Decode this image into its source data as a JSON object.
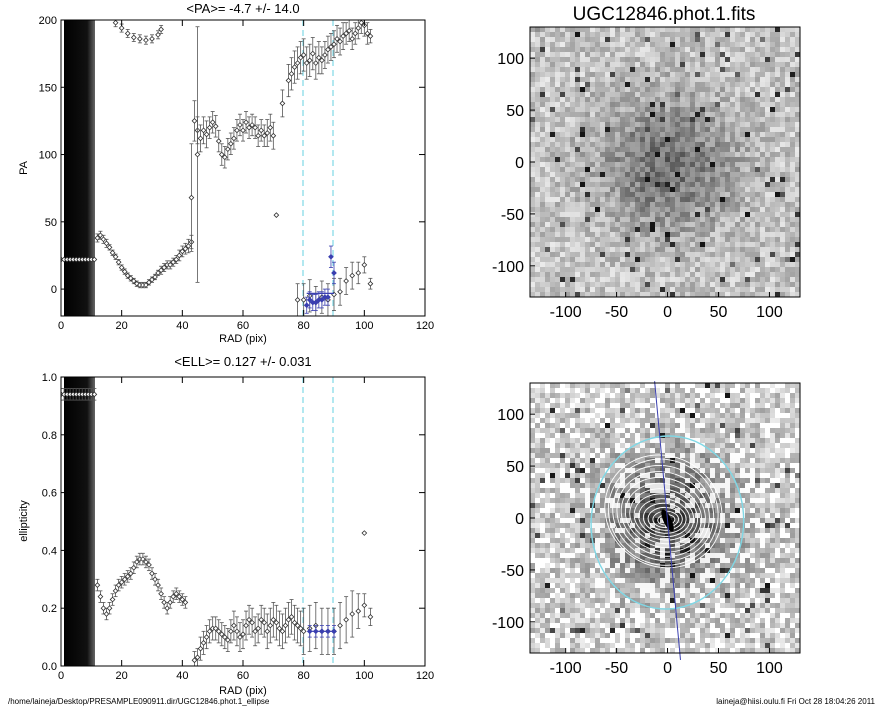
{
  "footer": {
    "path": "/home/laineja/Desktop/PRESAMPLE090911.dir/UGC12846.phot.1_ellipse",
    "stamp": "laineja@hiisi.oulu.fi  Fri Oct 28 18:04:26 2011"
  },
  "colors": {
    "cyan": "#7fd8e6",
    "blue": "#3a3fb0",
    "grey": "#555555"
  },
  "chart_data": [
    {
      "type": "scatter",
      "title": "<PA>=  -4.7 +/-  14.0",
      "xlabel": "RAD (pix)",
      "ylabel": "PA",
      "xlim": [
        0,
        120
      ],
      "ylim": [
        -20,
        200
      ],
      "xticks": [
        0,
        20,
        40,
        60,
        80,
        100,
        120
      ],
      "yticks": [
        0,
        50,
        100,
        150,
        200
      ],
      "shaded_region": [
        1,
        11.5
      ],
      "vlines": [
        80,
        90
      ],
      "series": [
        {
          "x": [
            0,
            1,
            2,
            3,
            4,
            5,
            6,
            7,
            8,
            9,
            10,
            11
          ],
          "y": [
            22,
            22,
            22,
            22,
            22,
            22,
            22,
            22,
            22,
            22,
            22,
            22
          ],
          "err": [
            0,
            0,
            0,
            0,
            0,
            0,
            0,
            0,
            0,
            0,
            0,
            0
          ]
        },
        {
          "x": [
            12,
            13,
            14,
            15,
            16,
            17,
            18,
            19,
            20,
            21,
            22,
            23,
            24,
            25,
            26,
            27,
            28,
            29,
            30,
            31,
            32,
            33,
            34,
            35,
            36,
            37,
            38,
            39,
            40,
            41,
            42,
            43
          ],
          "y": [
            38,
            40,
            37,
            34,
            31,
            27,
            24,
            20,
            16,
            13,
            10,
            8,
            6,
            4,
            3,
            3,
            3,
            5,
            7,
            9,
            12,
            14,
            16,
            18,
            18,
            20,
            22,
            25,
            28,
            30,
            32,
            35
          ],
          "err": [
            3,
            3,
            3,
            3,
            2,
            2,
            2,
            2,
            2,
            2,
            2,
            2,
            2,
            2,
            2,
            2,
            2,
            2,
            2,
            2,
            2,
            3,
            3,
            3,
            3,
            3,
            3,
            4,
            4,
            4,
            5,
            5
          ]
        },
        {
          "x": [
            18,
            20,
            22,
            24,
            26,
            28,
            30,
            32,
            33
          ],
          "y": [
            198,
            194,
            190,
            187,
            186,
            185,
            186,
            189,
            193
          ],
          "err": [
            3,
            3,
            3,
            3,
            3,
            3,
            3,
            3,
            3
          ]
        },
        {
          "x": [
            43
          ],
          "y": [
            68
          ],
          "err": [
            40
          ]
        },
        {
          "x": [
            44,
            45,
            46,
            47,
            48,
            49,
            50,
            51,
            52,
            53,
            54,
            55,
            56,
            57,
            58,
            59,
            60,
            61,
            62,
            63,
            64,
            65,
            66,
            67,
            68,
            69,
            70
          ],
          "y": [
            125,
            118,
            112,
            118,
            115,
            120,
            124,
            121,
            110,
            100,
            98,
            104,
            108,
            112,
            118,
            122,
            118,
            124,
            120,
            122,
            120,
            114,
            118,
            114,
            116,
            120,
            114
          ],
          "err": [
            15,
            10,
            10,
            10,
            10,
            8,
            8,
            8,
            8,
            8,
            8,
            8,
            8,
            8,
            8,
            8,
            8,
            8,
            8,
            8,
            8,
            8,
            8,
            8,
            10,
            10,
            10
          ]
        },
        {
          "x": [
            45
          ],
          "y": [
            100
          ],
          "err": [
            95
          ]
        },
        {
          "x": [
            71
          ],
          "y": [
            55
          ],
          "err": [
            0
          ]
        },
        {
          "x": [
            73,
            75,
            76,
            77,
            78,
            79,
            80,
            81,
            82,
            83,
            84,
            85,
            86,
            87,
            88,
            89,
            90,
            91,
            92,
            93,
            94,
            95,
            96,
            97,
            98,
            99,
            100,
            101,
            102
          ],
          "y": [
            138,
            155,
            160,
            165,
            168,
            172,
            174,
            168,
            170,
            175,
            168,
            172,
            170,
            174,
            178,
            180,
            182,
            186,
            184,
            188,
            190,
            192,
            186,
            190,
            194,
            198,
            196,
            190,
            188
          ],
          "err": [
            10,
            12,
            12,
            12,
            12,
            12,
            12,
            12,
            12,
            12,
            12,
            12,
            10,
            10,
            10,
            10,
            10,
            10,
            10,
            10,
            8,
            8,
            8,
            8,
            8,
            8,
            8,
            8,
            5
          ]
        },
        {
          "x": [
            78,
            80,
            82,
            84,
            86,
            88,
            90,
            92,
            94,
            96,
            98,
            100,
            102
          ],
          "y": [
            -8,
            -8,
            -5,
            -10,
            -6,
            -8,
            -4,
            -2,
            6,
            10,
            12,
            18,
            4
          ],
          "err": [
            12,
            12,
            12,
            12,
            12,
            12,
            12,
            10,
            10,
            10,
            8,
            6,
            4
          ]
        },
        {
          "x": [
            81,
            82,
            83,
            84,
            85,
            86,
            87,
            88,
            89,
            90
          ],
          "y": [
            -12,
            -8,
            -10,
            -10,
            -8,
            -8,
            -6,
            -6,
            24,
            12
          ],
          "err": [
            6,
            6,
            6,
            6,
            6,
            6,
            6,
            6,
            8,
            8
          ],
          "color": "blue"
        }
      ]
    },
    {
      "type": "image",
      "title": "UGC12846.phot.1.fits",
      "xlim": [
        -135,
        130
      ],
      "ylim": [
        -130,
        130
      ],
      "xticks": [
        -100,
        -50,
        0,
        50,
        100
      ],
      "yticks": [
        -100,
        -50,
        0,
        50,
        100
      ]
    },
    {
      "type": "scatter",
      "title": "<ELL>= 0.127 +/-  0.031",
      "xlabel": "RAD (pix)",
      "ylabel": "ellipticity",
      "xlim": [
        0,
        120
      ],
      "ylim": [
        0,
        1
      ],
      "xticks": [
        0,
        20,
        40,
        60,
        80,
        100,
        120
      ],
      "yticks": [
        0.0,
        0.2,
        0.4,
        0.6,
        0.8,
        1.0
      ],
      "shaded_region": [
        1,
        11.5
      ],
      "vlines": [
        80,
        90
      ],
      "series": [
        {
          "x": [
            0,
            1,
            2,
            3,
            4,
            5,
            6,
            7,
            8,
            9,
            10,
            11
          ],
          "y": [
            0.94,
            0.94,
            0.94,
            0.94,
            0.94,
            0.94,
            0.94,
            0.94,
            0.94,
            0.94,
            0.94,
            0.94
          ],
          "err": [
            0.02,
            0.02,
            0.02,
            0.02,
            0.02,
            0.02,
            0.02,
            0.02,
            0.02,
            0.02,
            0.02,
            0.02
          ]
        },
        {
          "x": [
            12,
            13,
            14,
            15,
            16,
            17,
            18,
            19,
            20,
            21,
            22,
            23,
            24,
            25,
            26,
            27,
            28,
            29,
            30,
            31,
            32,
            33,
            34,
            35,
            36,
            37,
            38,
            39,
            40,
            41
          ],
          "y": [
            0.28,
            0.24,
            0.2,
            0.18,
            0.2,
            0.23,
            0.26,
            0.28,
            0.29,
            0.3,
            0.31,
            0.32,
            0.34,
            0.36,
            0.37,
            0.37,
            0.36,
            0.35,
            0.32,
            0.3,
            0.28,
            0.25,
            0.22,
            0.2,
            0.22,
            0.24,
            0.25,
            0.24,
            0.23,
            0.22
          ],
          "err": [
            0.02,
            0.02,
            0.02,
            0.02,
            0.02,
            0.02,
            0.02,
            0.02,
            0.02,
            0.02,
            0.02,
            0.02,
            0.02,
            0.02,
            0.02,
            0.02,
            0.02,
            0.02,
            0.02,
            0.02,
            0.02,
            0.02,
            0.02,
            0.02,
            0.02,
            0.02,
            0.02,
            0.02,
            0.02,
            0.02
          ]
        },
        {
          "x": [
            44,
            45,
            46,
            47,
            48,
            49,
            50,
            51,
            52,
            53,
            54,
            55,
            56,
            57,
            58,
            59,
            60,
            61,
            62,
            63,
            64,
            65,
            66,
            67,
            68,
            69,
            70,
            71,
            72,
            73,
            74,
            75,
            76,
            77,
            78,
            79
          ],
          "y": [
            0.02,
            0.03,
            0.06,
            0.08,
            0.1,
            0.12,
            0.13,
            0.13,
            0.12,
            0.11,
            0.1,
            0.09,
            0.12,
            0.14,
            0.12,
            0.1,
            0.11,
            0.14,
            0.16,
            0.15,
            0.12,
            0.13,
            0.16,
            0.15,
            0.12,
            0.14,
            0.16,
            0.15,
            0.13,
            0.12,
            0.14,
            0.16,
            0.17,
            0.15,
            0.14,
            0.13
          ],
          "err": [
            0.03,
            0.03,
            0.04,
            0.04,
            0.04,
            0.04,
            0.04,
            0.04,
            0.04,
            0.04,
            0.04,
            0.04,
            0.04,
            0.05,
            0.05,
            0.05,
            0.05,
            0.05,
            0.05,
            0.05,
            0.05,
            0.05,
            0.05,
            0.05,
            0.06,
            0.06,
            0.06,
            0.06,
            0.06,
            0.06,
            0.06,
            0.06,
            0.06,
            0.06,
            0.06,
            0.06
          ]
        },
        {
          "x": [
            80,
            82,
            84,
            86,
            88,
            90,
            92,
            94,
            96,
            98,
            100,
            102
          ],
          "y": [
            0.12,
            0.13,
            0.14,
            0.12,
            0.12,
            0.12,
            0.14,
            0.16,
            0.18,
            0.19,
            0.21,
            0.17
          ],
          "err": [
            0.08,
            0.08,
            0.08,
            0.08,
            0.08,
            0.08,
            0.08,
            0.08,
            0.08,
            0.06,
            0.04,
            0.03
          ]
        },
        {
          "x": [
            82,
            84,
            86,
            88,
            90
          ],
          "y": [
            0.12,
            0.12,
            0.12,
            0.12,
            0.12
          ],
          "err": [
            0.02,
            0.02,
            0.02,
            0.02,
            0.02
          ],
          "color": "blue"
        },
        {
          "x": [
            100
          ],
          "y": [
            0.46
          ],
          "err": [
            0
          ]
        }
      ]
    },
    {
      "type": "image",
      "title": "",
      "xlim": [
        -135,
        130
      ],
      "ylim": [
        -130,
        130
      ],
      "xticks": [
        -100,
        -50,
        0,
        50,
        100
      ],
      "yticks": [
        -100,
        -50,
        0,
        50,
        100
      ],
      "overlay": {
        "ellipse_semi_major": 85,
        "ellipse_ellipticity": 0.12,
        "pa_deg": -4.7
      }
    }
  ]
}
